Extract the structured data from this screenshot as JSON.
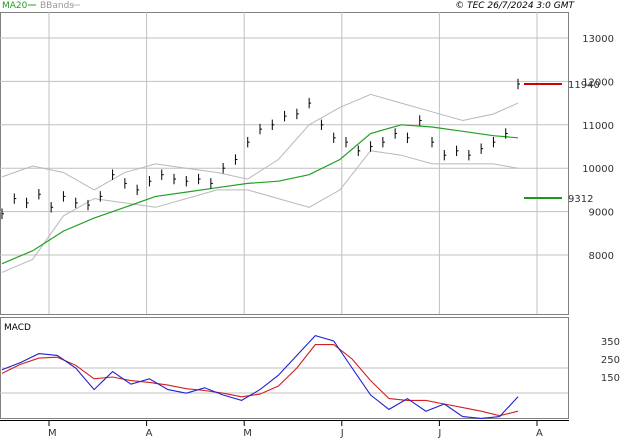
{
  "header": {
    "ma_label": "MA20",
    "bbands_label": "BBands",
    "copyright": "© TEC 26/7/2024 3:0 GMT"
  },
  "macd_panel": {
    "title": "MACD"
  },
  "colors": {
    "price": "#000000",
    "ma20": "#22a022",
    "bbands": "#b8b8b8",
    "resistance": "#cc0000",
    "support": "#1a9a1a",
    "macd_line": "#2020d0",
    "signal_line": "#d02020",
    "grid": "#c0c0c0"
  },
  "chart_data": [
    {
      "type": "line",
      "title": "",
      "y_ticks": [
        "13000",
        "12000",
        "11000",
        "10000",
        "9000",
        "8000"
      ],
      "ylim": [
        7000,
        13500
      ],
      "x_month_labels": [
        "M",
        "A",
        "M",
        "J",
        "J",
        "A"
      ],
      "grid": true,
      "series": [
        {
          "name": "MA20",
          "x": [
            0,
            5,
            10,
            15,
            20,
            25,
            30,
            35,
            40,
            45,
            50,
            55,
            60,
            65,
            70,
            75,
            80,
            84
          ],
          "values": [
            7800,
            8100,
            8550,
            8850,
            9100,
            9350,
            9450,
            9550,
            9650,
            9700,
            9850,
            10200,
            10800,
            11000,
            10950,
            10850,
            10750,
            10700
          ]
        },
        {
          "name": "BBands",
          "x": [
            0,
            5,
            10,
            15,
            20,
            25,
            30,
            35,
            40,
            45,
            50,
            55,
            60,
            65,
            70,
            75,
            80,
            84
          ],
          "values": [
            9800,
            10050,
            9900,
            9500,
            9900,
            10100,
            10000,
            9900,
            9750,
            10200,
            11000,
            11400,
            11700,
            11500,
            11300,
            11100,
            11250,
            11500
          ]
        },
        {
          "name": "BBands lower",
          "x": [
            0,
            5,
            10,
            15,
            20,
            25,
            30,
            35,
            40,
            45,
            50,
            55,
            60,
            65,
            70,
            75,
            80,
            84
          ],
          "values": [
            7600,
            7900,
            8900,
            9300,
            9200,
            9100,
            9300,
            9500,
            9500,
            9300,
            9100,
            9500,
            10400,
            10300,
            10100,
            10100,
            10100,
            10000
          ]
        },
        {
          "name": "price",
          "x": [
            0,
            2,
            4,
            6,
            8,
            10,
            12,
            14,
            16,
            18,
            20,
            22,
            24,
            26,
            28,
            30,
            32,
            34,
            36,
            38,
            40,
            42,
            44,
            46,
            48,
            50,
            52,
            54,
            56,
            58,
            60,
            62,
            64,
            66,
            68,
            70,
            72,
            74,
            76,
            78,
            80,
            82,
            84
          ],
          "values": [
            8950,
            9300,
            9200,
            9400,
            9100,
            9350,
            9200,
            9150,
            9350,
            9850,
            9650,
            9500,
            9700,
            9850,
            9750,
            9700,
            9750,
            9650,
            10000,
            10200,
            10600,
            10900,
            11000,
            11200,
            11250,
            11500,
            11000,
            10700,
            10600,
            10400,
            10500,
            10600,
            10800,
            10700,
            11100,
            10600,
            10300,
            10400,
            10300,
            10450,
            10600,
            10800,
            11940
          ]
        }
      ],
      "annotations": [
        {
          "label": "11940",
          "value": 11940,
          "color": "resistance"
        },
        {
          "label": "9312",
          "value": 9312,
          "color": "support"
        }
      ]
    },
    {
      "type": "line",
      "title": "MACD",
      "y_ticks": [
        "350",
        "250",
        "150"
      ],
      "ylim": [
        -150,
        450
      ],
      "series": [
        {
          "name": "MACD",
          "x": [
            0,
            3,
            6,
            9,
            12,
            15,
            18,
            21,
            24,
            27,
            30,
            33,
            36,
            39,
            42,
            45,
            48,
            51,
            54,
            57,
            60,
            63,
            66,
            69,
            72,
            75,
            78,
            81,
            84
          ],
          "values": [
            190,
            230,
            280,
            270,
            200,
            80,
            180,
            110,
            140,
            80,
            60,
            90,
            50,
            20,
            80,
            160,
            270,
            380,
            350,
            200,
            50,
            -30,
            30,
            -40,
            0,
            -70,
            -80,
            -70,
            40
          ]
        },
        {
          "name": "Signal",
          "x": [
            0,
            3,
            6,
            9,
            12,
            15,
            18,
            21,
            24,
            27,
            30,
            33,
            36,
            39,
            42,
            45,
            48,
            51,
            54,
            57,
            60,
            63,
            66,
            69,
            72,
            75,
            78,
            81,
            84
          ],
          "values": [
            170,
            220,
            255,
            260,
            215,
            140,
            150,
            130,
            120,
            105,
            85,
            75,
            60,
            40,
            55,
            100,
            200,
            330,
            330,
            250,
            130,
            30,
            20,
            20,
            0,
            -20,
            -40,
            -65,
            -40
          ]
        }
      ]
    }
  ]
}
